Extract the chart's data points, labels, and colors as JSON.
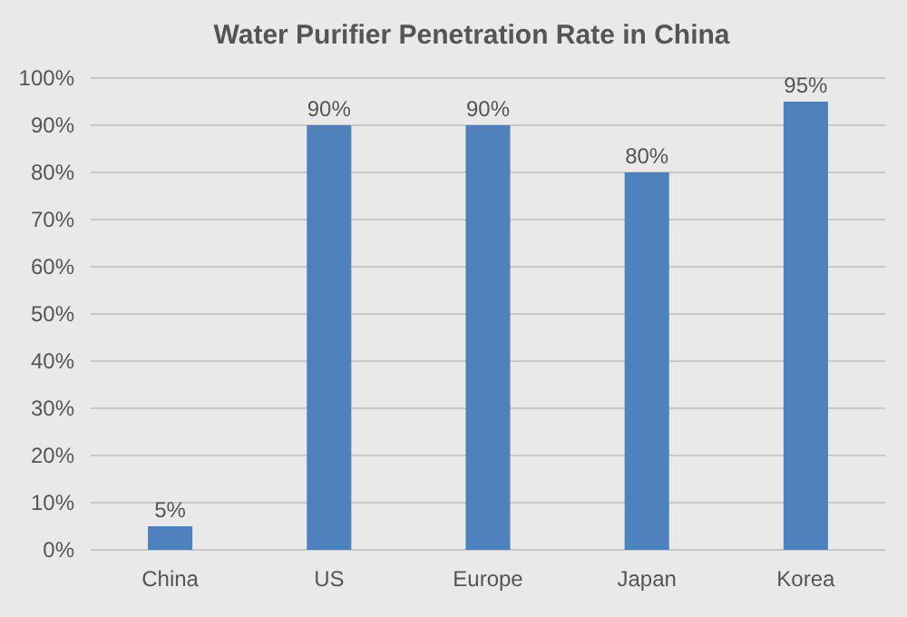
{
  "chart_data": {
    "type": "bar",
    "title": "Water Purifier Penetration Rate in China",
    "categories": [
      "China",
      "US",
      "Europe",
      "Japan",
      "Korea"
    ],
    "values": [
      5,
      90,
      90,
      80,
      95
    ],
    "value_labels": [
      "5%",
      "90%",
      "90%",
      "80%",
      "95%"
    ],
    "color": "#4f81bd",
    "ylim": [
      0,
      100
    ],
    "yticks": [
      {
        "value": 0,
        "label": "0%"
      },
      {
        "value": 10,
        "label": "10%"
      },
      {
        "value": 20,
        "label": "20%"
      },
      {
        "value": 30,
        "label": "30%"
      },
      {
        "value": 40,
        "label": "40%"
      },
      {
        "value": 50,
        "label": "50%"
      },
      {
        "value": 60,
        "label": "60%"
      },
      {
        "value": 70,
        "label": "70%"
      },
      {
        "value": 80,
        "label": "80%"
      },
      {
        "value": 90,
        "label": "90%"
      },
      {
        "value": 100,
        "label": "100%"
      }
    ],
    "grid": "y"
  }
}
